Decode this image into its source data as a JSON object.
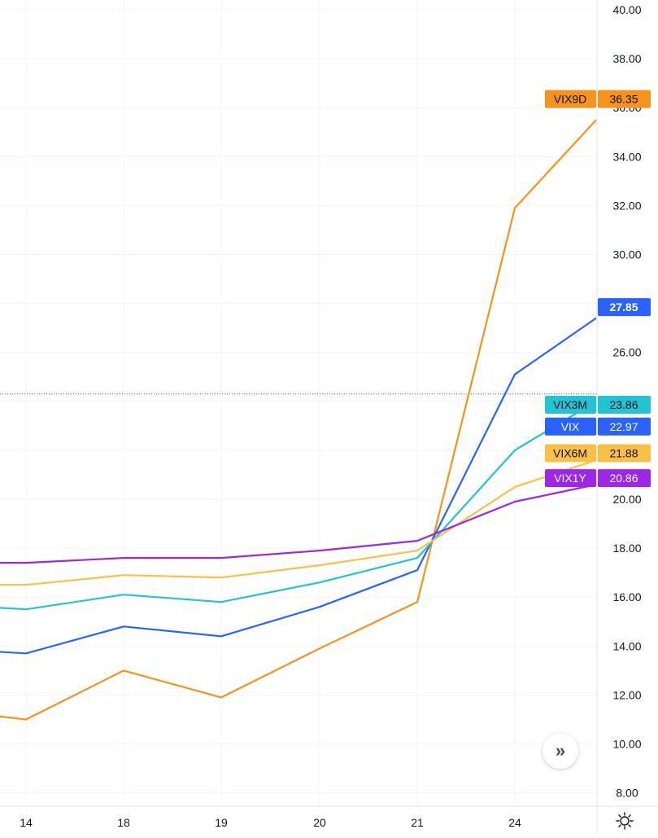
{
  "chart_data": {
    "type": "line",
    "categories": [
      "",
      "14",
      "18",
      "19",
      "20",
      "21",
      "24",
      ""
    ],
    "x_tick_labels": [
      "14",
      "18",
      "19",
      "20",
      "21",
      "24"
    ],
    "y_ticks": [
      "8.00",
      "10.00",
      "12.00",
      "14.00",
      "16.00",
      "18.00",
      "20.00",
      "22.00",
      "24.00",
      "26.00",
      "28.00",
      "30.00",
      "32.00",
      "34.00",
      "36.00",
      "38.00",
      "40.00"
    ],
    "ylim": [
      7.3,
      40.3
    ],
    "crosshair_y": 24.3,
    "grid": true,
    "series": [
      {
        "name": "VIX9D",
        "color": "#f7931a",
        "label_text": "#0a0f1e",
        "last_value": "36.35",
        "values": [
          11.2,
          11.0,
          13.0,
          11.9,
          13.9,
          15.8,
          31.9,
          35.5
        ]
      },
      {
        "name": "VIX",
        "color": "#2962ff",
        "label_text": "#ffffff",
        "last_value": "22.97",
        "values": [
          13.8,
          13.7,
          14.8,
          14.4,
          15.6,
          17.1,
          25.1,
          27.4
        ]
      },
      {
        "name": "VIX3M",
        "color": "#22c4d4",
        "label_text": "#0a0f1e",
        "last_value": "23.86",
        "values": [
          15.6,
          15.5,
          16.1,
          15.8,
          16.6,
          17.6,
          22.0,
          24.0
        ]
      },
      {
        "name": "VIX6M",
        "color": "#f9c143",
        "label_text": "#0a0f1e",
        "last_value": "21.88",
        "values": [
          16.5,
          16.5,
          16.9,
          16.8,
          17.3,
          17.9,
          20.5,
          21.6
        ]
      },
      {
        "name": "VIX1Y",
        "color": "#9c27e6",
        "label_text": "#ffffff",
        "last_value": "20.86",
        "values": [
          17.4,
          17.4,
          17.6,
          17.6,
          17.9,
          18.3,
          19.9,
          20.6
        ]
      }
    ],
    "price_tags": [
      {
        "series": "VIX9D",
        "value": 36.35,
        "kind": "name_value"
      },
      {
        "series": "VIX",
        "value": 27.85,
        "kind": "value_only",
        "text": "27.85"
      },
      {
        "series": "VIX3M",
        "value": 23.86,
        "kind": "name_value"
      },
      {
        "series": "VIX",
        "value": 22.97,
        "kind": "name_value"
      },
      {
        "series": "VIX6M",
        "value": 21.88,
        "kind": "name_value"
      },
      {
        "series": "VIX1Y",
        "value": 20.86,
        "kind": "name_value"
      }
    ]
  },
  "controls": {
    "scroll_icon": "double-chevron-right-icon",
    "scroll_glyph": "»",
    "settings_icon": "gear-icon"
  }
}
